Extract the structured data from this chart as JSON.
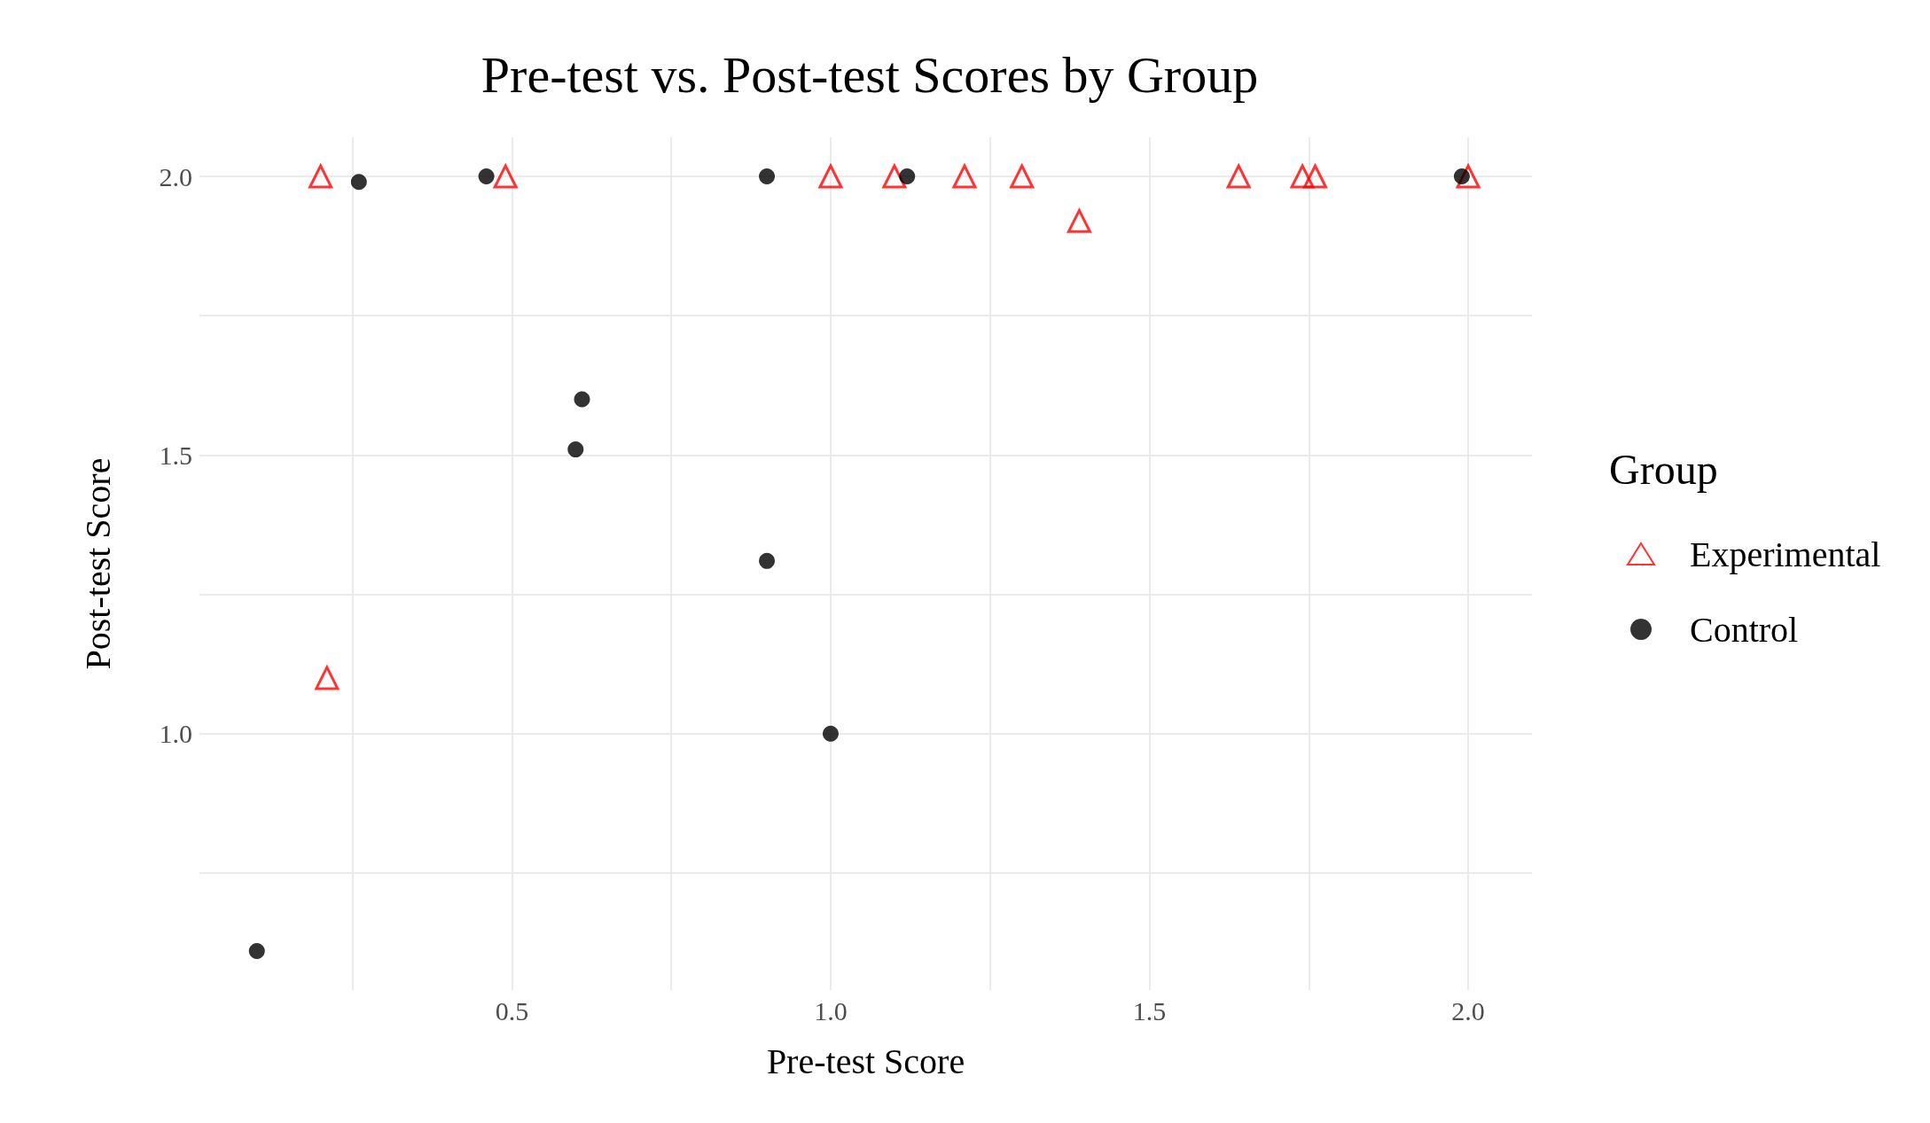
{
  "chart_data": {
    "type": "scatter",
    "title": "Pre-test vs. Post-test Scores by Group",
    "xlabel": "Pre-test Score",
    "ylabel": "Post-test Score",
    "legend_title": "Group",
    "xlim": [
      0.01,
      2.1
    ],
    "ylim": [
      0.54,
      2.07
    ],
    "xticks": [
      {
        "value": 0.25,
        "label": null
      },
      0.5,
      {
        "value": 0.75,
        "label": null
      },
      {
        "value": 1,
        "label": "1.0"
      },
      {
        "value": 1.25,
        "label": null
      },
      1.5,
      {
        "value": 1.75,
        "label": null
      },
      {
        "value": 2,
        "label": "2.0"
      }
    ],
    "yticks": [
      {
        "value": 0.75,
        "label": null
      },
      {
        "value": 1,
        "label": "1.0"
      },
      {
        "value": 1.25,
        "label": null
      },
      1.5,
      {
        "value": 1.75,
        "label": null
      },
      {
        "value": 2,
        "label": "2.0"
      }
    ],
    "grid": true,
    "legend": "right",
    "series": [
      {
        "name": "Experimental",
        "color": "#ff0000",
        "marker": "triangle",
        "x": [
          0.2,
          0.49,
          1.0,
          1.1,
          1.21,
          1.3,
          1.39,
          1.64,
          1.74,
          1.76,
          2.0,
          0.21
        ],
        "values": [
          2.0,
          2.0,
          2.0,
          2.0,
          2.0,
          2.0,
          1.92,
          2.0,
          2.0,
          2.0,
          2.0,
          1.1
        ]
      },
      {
        "name": "Control",
        "color": "#000000",
        "marker": "circle",
        "x": [
          0.1,
          0.26,
          0.46,
          0.6,
          0.61,
          0.9,
          0.9,
          1.0,
          1.12,
          1.99
        ],
        "values": [
          0.61,
          1.99,
          2.0,
          1.51,
          1.6,
          2.0,
          1.31,
          1.0,
          2.0,
          2.0
        ]
      }
    ]
  }
}
